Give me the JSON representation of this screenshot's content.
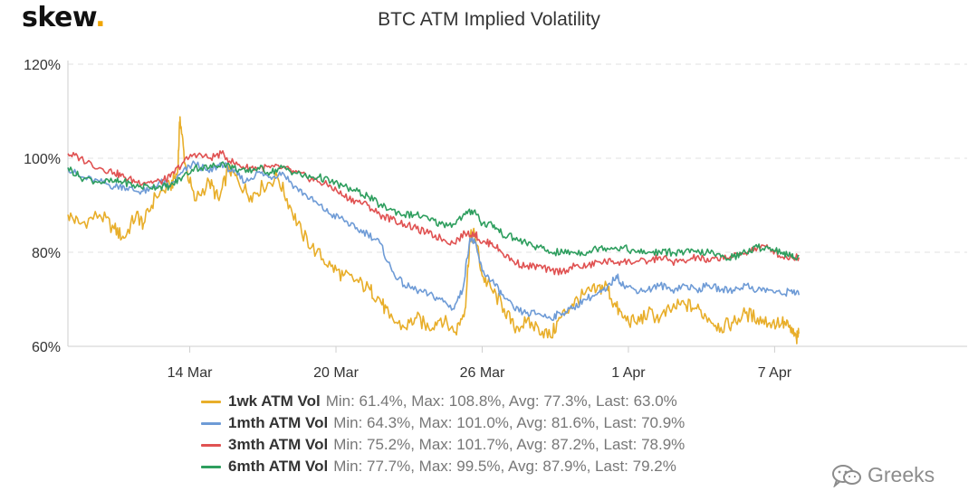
{
  "brand": {
    "text": "skew",
    "dot": "."
  },
  "watermark": {
    "text": "Greeks",
    "icon": "wechat-icon"
  },
  "chart_data": {
    "type": "line",
    "title": "BTC ATM Implied Volatility",
    "xlabel": "",
    "ylabel": "",
    "ylim": [
      60,
      120
    ],
    "yticks": [
      "60%",
      "80%",
      "100%",
      "120%"
    ],
    "ytick_values": [
      60,
      80,
      100,
      120
    ],
    "xlim": [
      9.0,
      45.9
    ],
    "xticks": [
      "14 Mar",
      "20 Mar",
      "26 Mar",
      "1 Apr",
      "7 Apr"
    ],
    "xtick_values": [
      14,
      20,
      26,
      32,
      38
    ],
    "x_unit": "day of March 2020 (32 = 1 Apr)",
    "grid": "horizontal dashed",
    "legend_position": "bottom",
    "series": [
      {
        "name": "1wk ATM Vol",
        "color": "#e8ae2a",
        "stats": "Min: 61.4%, Max: 108.8%, Avg: 77.3%, Last: 63.0%",
        "points": [
          [
            9.0,
            88
          ],
          [
            9.5,
            86
          ],
          [
            10.3,
            88
          ],
          [
            10.9,
            85
          ],
          [
            11.3,
            83
          ],
          [
            11.8,
            88
          ],
          [
            12.1,
            86
          ],
          [
            12.6,
            92
          ],
          [
            13.2,
            94
          ],
          [
            13.5,
            97
          ],
          [
            13.6,
            108.8
          ],
          [
            13.8,
            99
          ],
          [
            14.2,
            91
          ],
          [
            14.8,
            95
          ],
          [
            15.2,
            91
          ],
          [
            15.6,
            98
          ],
          [
            16.0,
            95
          ],
          [
            16.5,
            92
          ],
          [
            17.0,
            94
          ],
          [
            17.6,
            96
          ],
          [
            18.1,
            90
          ],
          [
            18.6,
            84
          ],
          [
            19.2,
            80
          ],
          [
            19.8,
            77
          ],
          [
            20.3,
            75
          ],
          [
            20.8,
            74
          ],
          [
            21.4,
            72
          ],
          [
            21.8,
            70
          ],
          [
            22.2,
            66
          ],
          [
            22.8,
            64
          ],
          [
            23.3,
            66
          ],
          [
            23.8,
            64
          ],
          [
            24.3,
            66
          ],
          [
            24.9,
            63
          ],
          [
            25.3,
            68
          ],
          [
            25.5,
            83
          ],
          [
            25.7,
            84
          ],
          [
            26.0,
            75
          ],
          [
            26.4,
            72
          ],
          [
            26.9,
            68
          ],
          [
            27.3,
            64
          ],
          [
            27.8,
            65
          ],
          [
            28.3,
            64
          ],
          [
            28.8,
            62
          ],
          [
            29.2,
            66
          ],
          [
            29.7,
            69
          ],
          [
            30.2,
            71
          ],
          [
            30.7,
            72
          ],
          [
            31.1,
            73
          ],
          [
            31.4,
            69
          ],
          [
            31.8,
            66
          ],
          [
            32.3,
            65
          ],
          [
            32.8,
            67
          ],
          [
            33.3,
            66
          ],
          [
            33.8,
            68
          ],
          [
            34.3,
            69
          ],
          [
            34.8,
            68
          ],
          [
            35.3,
            66
          ],
          [
            35.8,
            64
          ],
          [
            36.3,
            65
          ],
          [
            36.8,
            67
          ],
          [
            37.3,
            66
          ],
          [
            37.8,
            65
          ],
          [
            38.3,
            65
          ],
          [
            38.6,
            64
          ],
          [
            38.9,
            61.4
          ],
          [
            39.0,
            63
          ]
        ]
      },
      {
        "name": "1mth ATM Vol",
        "color": "#6e9bd6",
        "stats": "Min: 64.3%, Max: 101.0%, Avg: 81.6%, Last: 70.9%",
        "points": [
          [
            9.0,
            98
          ],
          [
            9.5,
            96
          ],
          [
            10.3,
            95
          ],
          [
            10.9,
            94
          ],
          [
            11.3,
            94
          ],
          [
            11.8,
            93
          ],
          [
            12.3,
            93
          ],
          [
            12.8,
            95
          ],
          [
            13.2,
            94
          ],
          [
            13.7,
            97
          ],
          [
            14.2,
            99
          ],
          [
            14.8,
            97
          ],
          [
            15.3,
            99
          ],
          [
            15.8,
            97
          ],
          [
            16.3,
            95
          ],
          [
            16.8,
            97
          ],
          [
            17.3,
            96
          ],
          [
            17.8,
            97
          ],
          [
            18.3,
            94
          ],
          [
            18.8,
            92
          ],
          [
            19.3,
            90
          ],
          [
            19.8,
            88
          ],
          [
            20.3,
            87
          ],
          [
            20.8,
            85
          ],
          [
            21.3,
            84
          ],
          [
            21.8,
            82
          ],
          [
            22.3,
            76
          ],
          [
            22.8,
            73
          ],
          [
            23.3,
            72
          ],
          [
            23.8,
            71
          ],
          [
            24.3,
            70
          ],
          [
            24.8,
            68
          ],
          [
            25.2,
            72
          ],
          [
            25.5,
            83
          ],
          [
            25.7,
            82
          ],
          [
            26.0,
            76
          ],
          [
            26.4,
            74
          ],
          [
            26.8,
            71
          ],
          [
            27.3,
            68
          ],
          [
            27.8,
            67
          ],
          [
            28.3,
            67
          ],
          [
            28.8,
            66
          ],
          [
            29.2,
            67
          ],
          [
            29.7,
            68
          ],
          [
            30.2,
            70
          ],
          [
            30.7,
            71
          ],
          [
            31.1,
            72
          ],
          [
            31.5,
            75
          ],
          [
            31.8,
            73
          ],
          [
            32.3,
            72
          ],
          [
            32.8,
            72
          ],
          [
            33.3,
            73
          ],
          [
            33.8,
            72
          ],
          [
            34.3,
            73
          ],
          [
            34.8,
            72
          ],
          [
            35.3,
            73
          ],
          [
            35.8,
            72
          ],
          [
            36.3,
            72
          ],
          [
            36.8,
            73
          ],
          [
            37.3,
            72
          ],
          [
            37.8,
            72
          ],
          [
            38.3,
            71
          ],
          [
            38.7,
            72
          ],
          [
            39.0,
            70.9
          ]
        ]
      },
      {
        "name": "3mth ATM Vol",
        "color": "#e05252",
        "stats": "Min: 75.2%, Max: 101.7%, Avg: 87.2%, Last: 78.9%",
        "points": [
          [
            9.0,
            101
          ],
          [
            9.5,
            100
          ],
          [
            10.3,
            98
          ],
          [
            10.9,
            97
          ],
          [
            11.3,
            96
          ],
          [
            11.8,
            95
          ],
          [
            12.3,
            95
          ],
          [
            12.8,
            95
          ],
          [
            13.2,
            96
          ],
          [
            13.7,
            99
          ],
          [
            14.2,
            101
          ],
          [
            14.8,
            100
          ],
          [
            15.3,
            101
          ],
          [
            15.8,
            99
          ],
          [
            16.3,
            98
          ],
          [
            16.8,
            98
          ],
          [
            17.3,
            98
          ],
          [
            17.8,
            98
          ],
          [
            18.3,
            97
          ],
          [
            18.8,
            96
          ],
          [
            19.3,
            95
          ],
          [
            19.8,
            94
          ],
          [
            20.3,
            92
          ],
          [
            20.8,
            91
          ],
          [
            21.3,
            90
          ],
          [
            21.8,
            88
          ],
          [
            22.3,
            87
          ],
          [
            22.8,
            86
          ],
          [
            23.3,
            85
          ],
          [
            23.8,
            84
          ],
          [
            24.3,
            83
          ],
          [
            24.8,
            82
          ],
          [
            25.3,
            84
          ],
          [
            25.7,
            84
          ],
          [
            26.0,
            82
          ],
          [
            26.4,
            82
          ],
          [
            26.8,
            80
          ],
          [
            27.3,
            78
          ],
          [
            27.8,
            77
          ],
          [
            28.3,
            77
          ],
          [
            28.8,
            76
          ],
          [
            29.3,
            76
          ],
          [
            29.8,
            77
          ],
          [
            30.3,
            77
          ],
          [
            30.8,
            78
          ],
          [
            31.3,
            78
          ],
          [
            31.8,
            78
          ],
          [
            32.3,
            78
          ],
          [
            32.8,
            78
          ],
          [
            33.3,
            79
          ],
          [
            33.8,
            78
          ],
          [
            34.3,
            78
          ],
          [
            34.8,
            79
          ],
          [
            35.3,
            78
          ],
          [
            35.8,
            79
          ],
          [
            36.3,
            79
          ],
          [
            36.8,
            80
          ],
          [
            37.3,
            81
          ],
          [
            37.8,
            81
          ],
          [
            38.3,
            79
          ],
          [
            38.7,
            79
          ],
          [
            39.0,
            78.9
          ]
        ]
      },
      {
        "name": "6mth ATM Vol",
        "color": "#2e9e5e",
        "stats": "Min: 77.7%, Max: 99.5%, Avg: 87.9%, Last: 79.2%",
        "points": [
          [
            9.0,
            98
          ],
          [
            9.5,
            96
          ],
          [
            10.3,
            95
          ],
          [
            10.9,
            95
          ],
          [
            11.3,
            95
          ],
          [
            11.8,
            94
          ],
          [
            12.3,
            94
          ],
          [
            12.8,
            94
          ],
          [
            13.2,
            94
          ],
          [
            13.7,
            96
          ],
          [
            14.2,
            98
          ],
          [
            14.8,
            98
          ],
          [
            15.3,
            99
          ],
          [
            15.8,
            98
          ],
          [
            16.3,
            97
          ],
          [
            16.8,
            98
          ],
          [
            17.3,
            97
          ],
          [
            17.8,
            98
          ],
          [
            18.3,
            97
          ],
          [
            18.8,
            96
          ],
          [
            19.3,
            96
          ],
          [
            19.8,
            95
          ],
          [
            20.3,
            94
          ],
          [
            20.8,
            93
          ],
          [
            21.3,
            92
          ],
          [
            21.8,
            90
          ],
          [
            22.3,
            89
          ],
          [
            22.8,
            88
          ],
          [
            23.3,
            88
          ],
          [
            23.8,
            87
          ],
          [
            24.3,
            86
          ],
          [
            24.8,
            86
          ],
          [
            25.3,
            88
          ],
          [
            25.7,
            89
          ],
          [
            26.0,
            86
          ],
          [
            26.4,
            86
          ],
          [
            26.8,
            84
          ],
          [
            27.3,
            83
          ],
          [
            27.8,
            82
          ],
          [
            28.3,
            81
          ],
          [
            28.8,
            80
          ],
          [
            29.3,
            80
          ],
          [
            29.8,
            80
          ],
          [
            30.3,
            80
          ],
          [
            30.8,
            81
          ],
          [
            31.3,
            81
          ],
          [
            31.8,
            81
          ],
          [
            32.3,
            80
          ],
          [
            32.8,
            80
          ],
          [
            33.3,
            80
          ],
          [
            33.8,
            80
          ],
          [
            34.3,
            80
          ],
          [
            34.8,
            80
          ],
          [
            35.3,
            80
          ],
          [
            35.8,
            79
          ],
          [
            36.3,
            79
          ],
          [
            36.8,
            80
          ],
          [
            37.3,
            81
          ],
          [
            37.8,
            81
          ],
          [
            38.3,
            80
          ],
          [
            38.7,
            79
          ],
          [
            39.0,
            79.2
          ]
        ]
      }
    ]
  }
}
